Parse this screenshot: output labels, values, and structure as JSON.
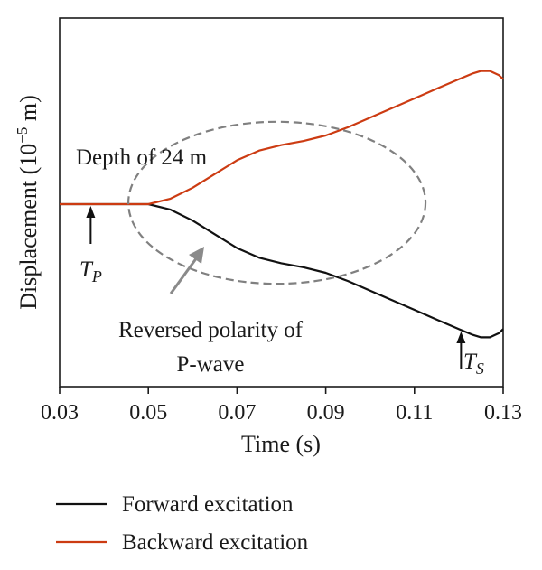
{
  "chart_data": {
    "type": "line",
    "xlabel": "Time (s)",
    "ylabel": "Displacement (10",
    "ylabel_exp": "−5",
    "ylabel_unit": " m)",
    "xlim": [
      0.03,
      0.13
    ],
    "ylim": [
      -1.0,
      1.0
    ],
    "x_ticks": [
      "0.03",
      "0.05",
      "0.07",
      "0.09",
      "0.11",
      "0.13"
    ],
    "y_ticks_shown": false,
    "grid": false,
    "legend_placement": "bottom",
    "series": [
      {
        "name": "Forward excitation",
        "color": "#111111",
        "x": [
          0.03,
          0.035,
          0.04,
          0.045,
          0.05,
          0.055,
          0.06,
          0.065,
          0.07,
          0.075,
          0.08,
          0.085,
          0.09,
          0.095,
          0.1,
          0.105,
          0.11,
          0.115,
          0.12,
          0.123,
          0.125,
          0.127,
          0.129,
          0.13
        ],
        "y": [
          0,
          0,
          0,
          0,
          0,
          -0.04,
          -0.12,
          -0.22,
          -0.32,
          -0.39,
          -0.43,
          -0.46,
          -0.5,
          -0.56,
          -0.63,
          -0.7,
          -0.77,
          -0.84,
          -0.91,
          -0.95,
          -0.97,
          -0.97,
          -0.94,
          -0.91
        ]
      },
      {
        "name": "Backward excitation",
        "color": "#cc3b12",
        "x": [
          0.03,
          0.035,
          0.04,
          0.045,
          0.05,
          0.055,
          0.06,
          0.065,
          0.07,
          0.075,
          0.08,
          0.085,
          0.09,
          0.095,
          0.1,
          0.105,
          0.11,
          0.115,
          0.12,
          0.123,
          0.125,
          0.127,
          0.129,
          0.13
        ],
        "y": [
          0,
          0,
          0,
          0,
          0,
          0.04,
          0.12,
          0.22,
          0.32,
          0.39,
          0.43,
          0.46,
          0.5,
          0.56,
          0.63,
          0.7,
          0.77,
          0.84,
          0.91,
          0.95,
          0.97,
          0.97,
          0.94,
          0.91
        ]
      }
    ],
    "annotations": {
      "depth_label": "Depth of 24 m",
      "tp_letter": "T",
      "tp_sub": "P",
      "tp_time": 0.037,
      "ts_letter": "T",
      "ts_sub": "S",
      "ts_time": 0.1205,
      "polarity_line1": "Reversed polarity of",
      "polarity_line2": "P-wave",
      "ellipse_center": [
        0.079,
        0.01
      ],
      "ellipse_radii": [
        0.0335,
        0.59
      ]
    }
  }
}
